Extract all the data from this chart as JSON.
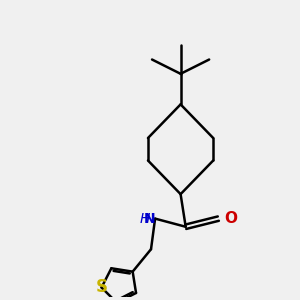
{
  "background_color": "#f0f0f0",
  "bond_color": "#000000",
  "bond_width": 1.8,
  "atom_colors": {
    "S": "#c8b400",
    "N": "#0000cc",
    "O": "#cc0000",
    "C": "#000000"
  },
  "font_size_NH": 10,
  "font_size_O": 11,
  "font_size_S": 12,
  "fig_width": 3.0,
  "fig_height": 3.0,
  "dpi": 100
}
